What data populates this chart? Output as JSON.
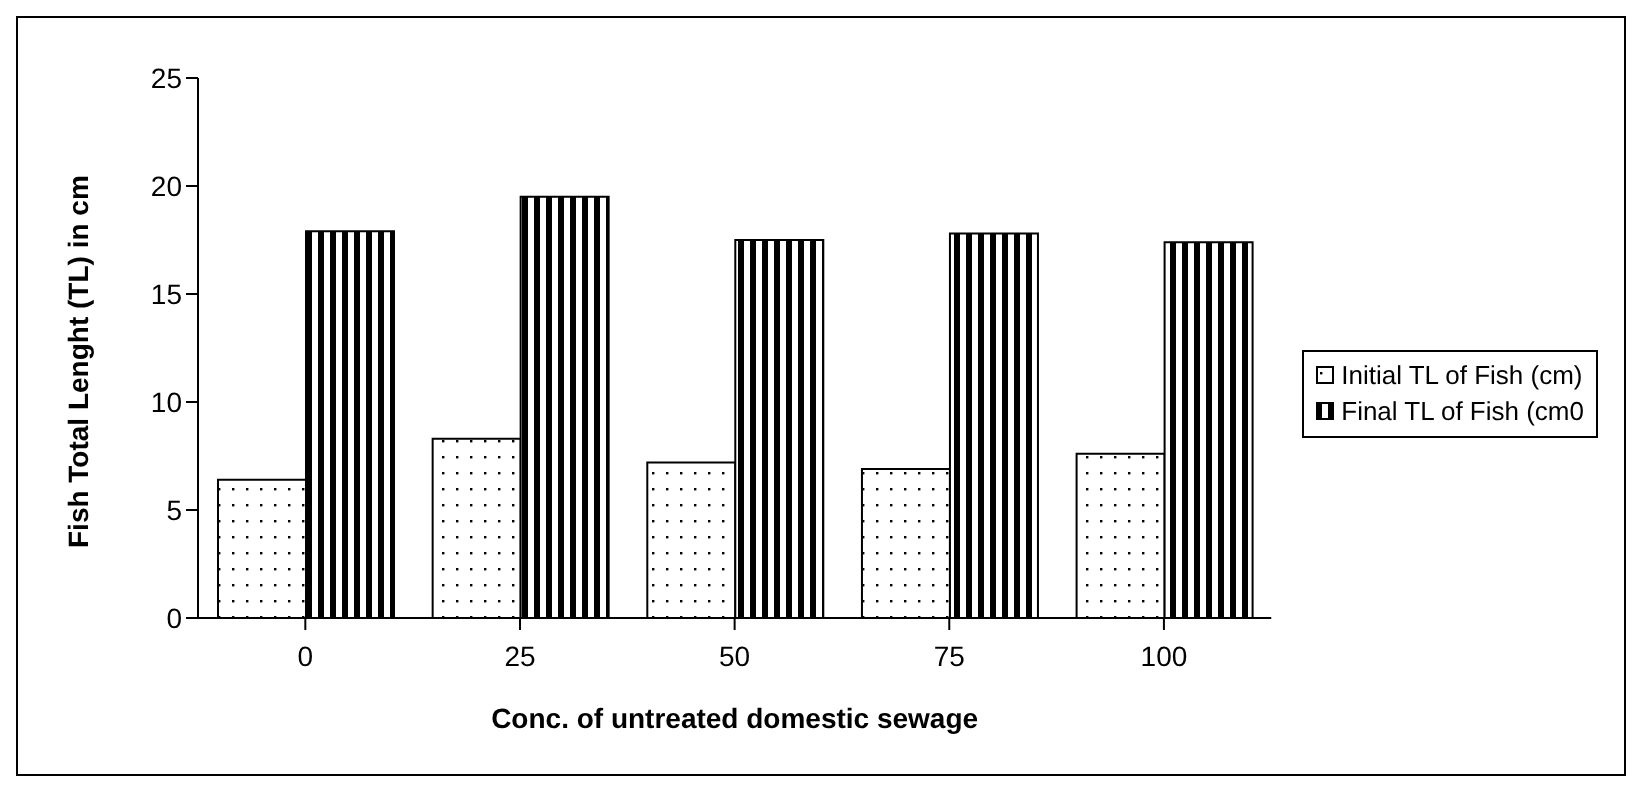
{
  "chart_data": {
    "type": "bar",
    "xlabel": "Conc. of untreated domestic sewage",
    "ylabel": "Fish Total Lenght (TL) in cm",
    "categories": [
      "0",
      "25",
      "50",
      "75",
      "100"
    ],
    "series": [
      {
        "name": "Initial TL of Fish (cm)",
        "color": "#000000",
        "values": [
          6.4,
          8.3,
          7.2,
          6.9,
          7.6
        ]
      },
      {
        "name": "Final TL of Fish (cm0",
        "color": "#000000",
        "values": [
          17.9,
          19.5,
          17.5,
          17.8,
          17.4
        ]
      }
    ],
    "ylim": [
      0,
      25
    ],
    "yticks": [
      0,
      5,
      10,
      15,
      20,
      25
    ],
    "grid": false,
    "legend": "right"
  }
}
